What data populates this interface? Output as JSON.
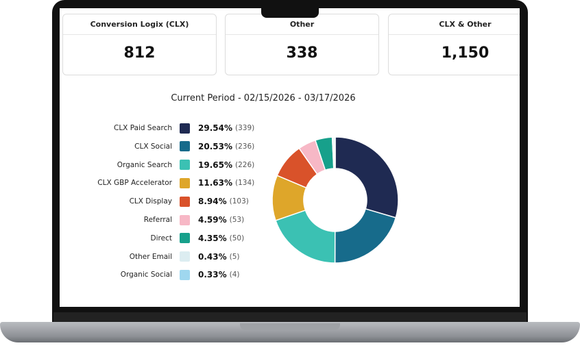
{
  "cards": [
    {
      "title": "Conversion Logix (CLX)",
      "value": 812
    },
    {
      "title": "Other",
      "value": 338
    },
    {
      "title": "CLX & Other",
      "value": 1150,
      "value_label": "1,150"
    }
  ],
  "chart_data": {
    "type": "donut",
    "title": "Current Period - 02/15/2026 - 03/17/2026",
    "categories": [
      "CLX Paid Search",
      "CLX Social",
      "Organic Search",
      "CLX GBP Accelerator",
      "CLX Display",
      "Referral",
      "Direct",
      "Other Email",
      "Organic Social"
    ],
    "values": [
      29.54,
      20.53,
      19.65,
      11.63,
      8.94,
      4.59,
      4.35,
      0.43,
      0.33
    ],
    "value_labels": [
      "29.54%",
      "20.53%",
      "19.65%",
      "11.63%",
      "8.94%",
      "4.59%",
      "4.35%",
      "0.43%",
      "0.33%"
    ],
    "counts": [
      339,
      236,
      226,
      134,
      103,
      53,
      50,
      5,
      4
    ],
    "count_labels": [
      "(339)",
      "(236)",
      "(226)",
      "(134)",
      "(103)",
      "(53)",
      "(50)",
      "(5)",
      "(4)"
    ],
    "colors": [
      "#1f2a52",
      "#176b8b",
      "#3bc1b3",
      "#dea62a",
      "#d9522a",
      "#f7b8c6",
      "#17a08b",
      "#dcedf1",
      "#9fd7ef"
    ]
  }
}
